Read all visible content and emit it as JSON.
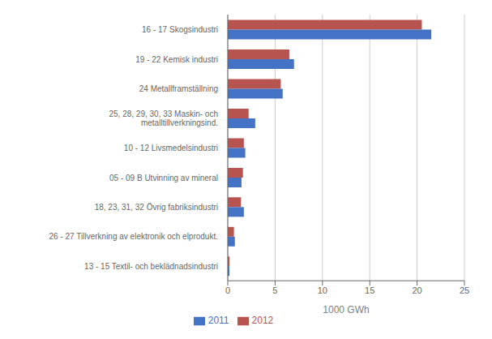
{
  "chart_data": {
    "type": "bar",
    "orientation": "horizontal",
    "categories": [
      "16 - 17 Skogsindustri",
      "19 - 22 Kemisk industri",
      "24 Metallframställning",
      "25, 28, 29, 30, 33 Maskin- och\nmetalltillverkningsind.",
      "10 - 12 Livsmedelsindustri",
      "05 - 09 B Utvinning av mineral",
      "18, 23, 31, 32 Övrig fabriksindustri",
      "26 - 27 Tillverkning av elektronik och elprodukt.",
      "13 - 15 Textil- och beklädnadsindustri"
    ],
    "series": [
      {
        "name": "2012",
        "color": "#b85450",
        "values": [
          20.5,
          6.5,
          5.6,
          2.2,
          1.7,
          1.6,
          1.4,
          0.65,
          0.18
        ]
      },
      {
        "name": "2011",
        "color": "#4472c4",
        "values": [
          21.5,
          7.0,
          5.8,
          2.9,
          1.85,
          1.45,
          1.7,
          0.75,
          0.17
        ]
      }
    ],
    "xlabel": "1000 GWh",
    "xlim": [
      0,
      25
    ],
    "xticks": [
      0,
      5,
      10,
      15,
      20,
      25
    ],
    "grid": true,
    "legend": "bottom"
  }
}
